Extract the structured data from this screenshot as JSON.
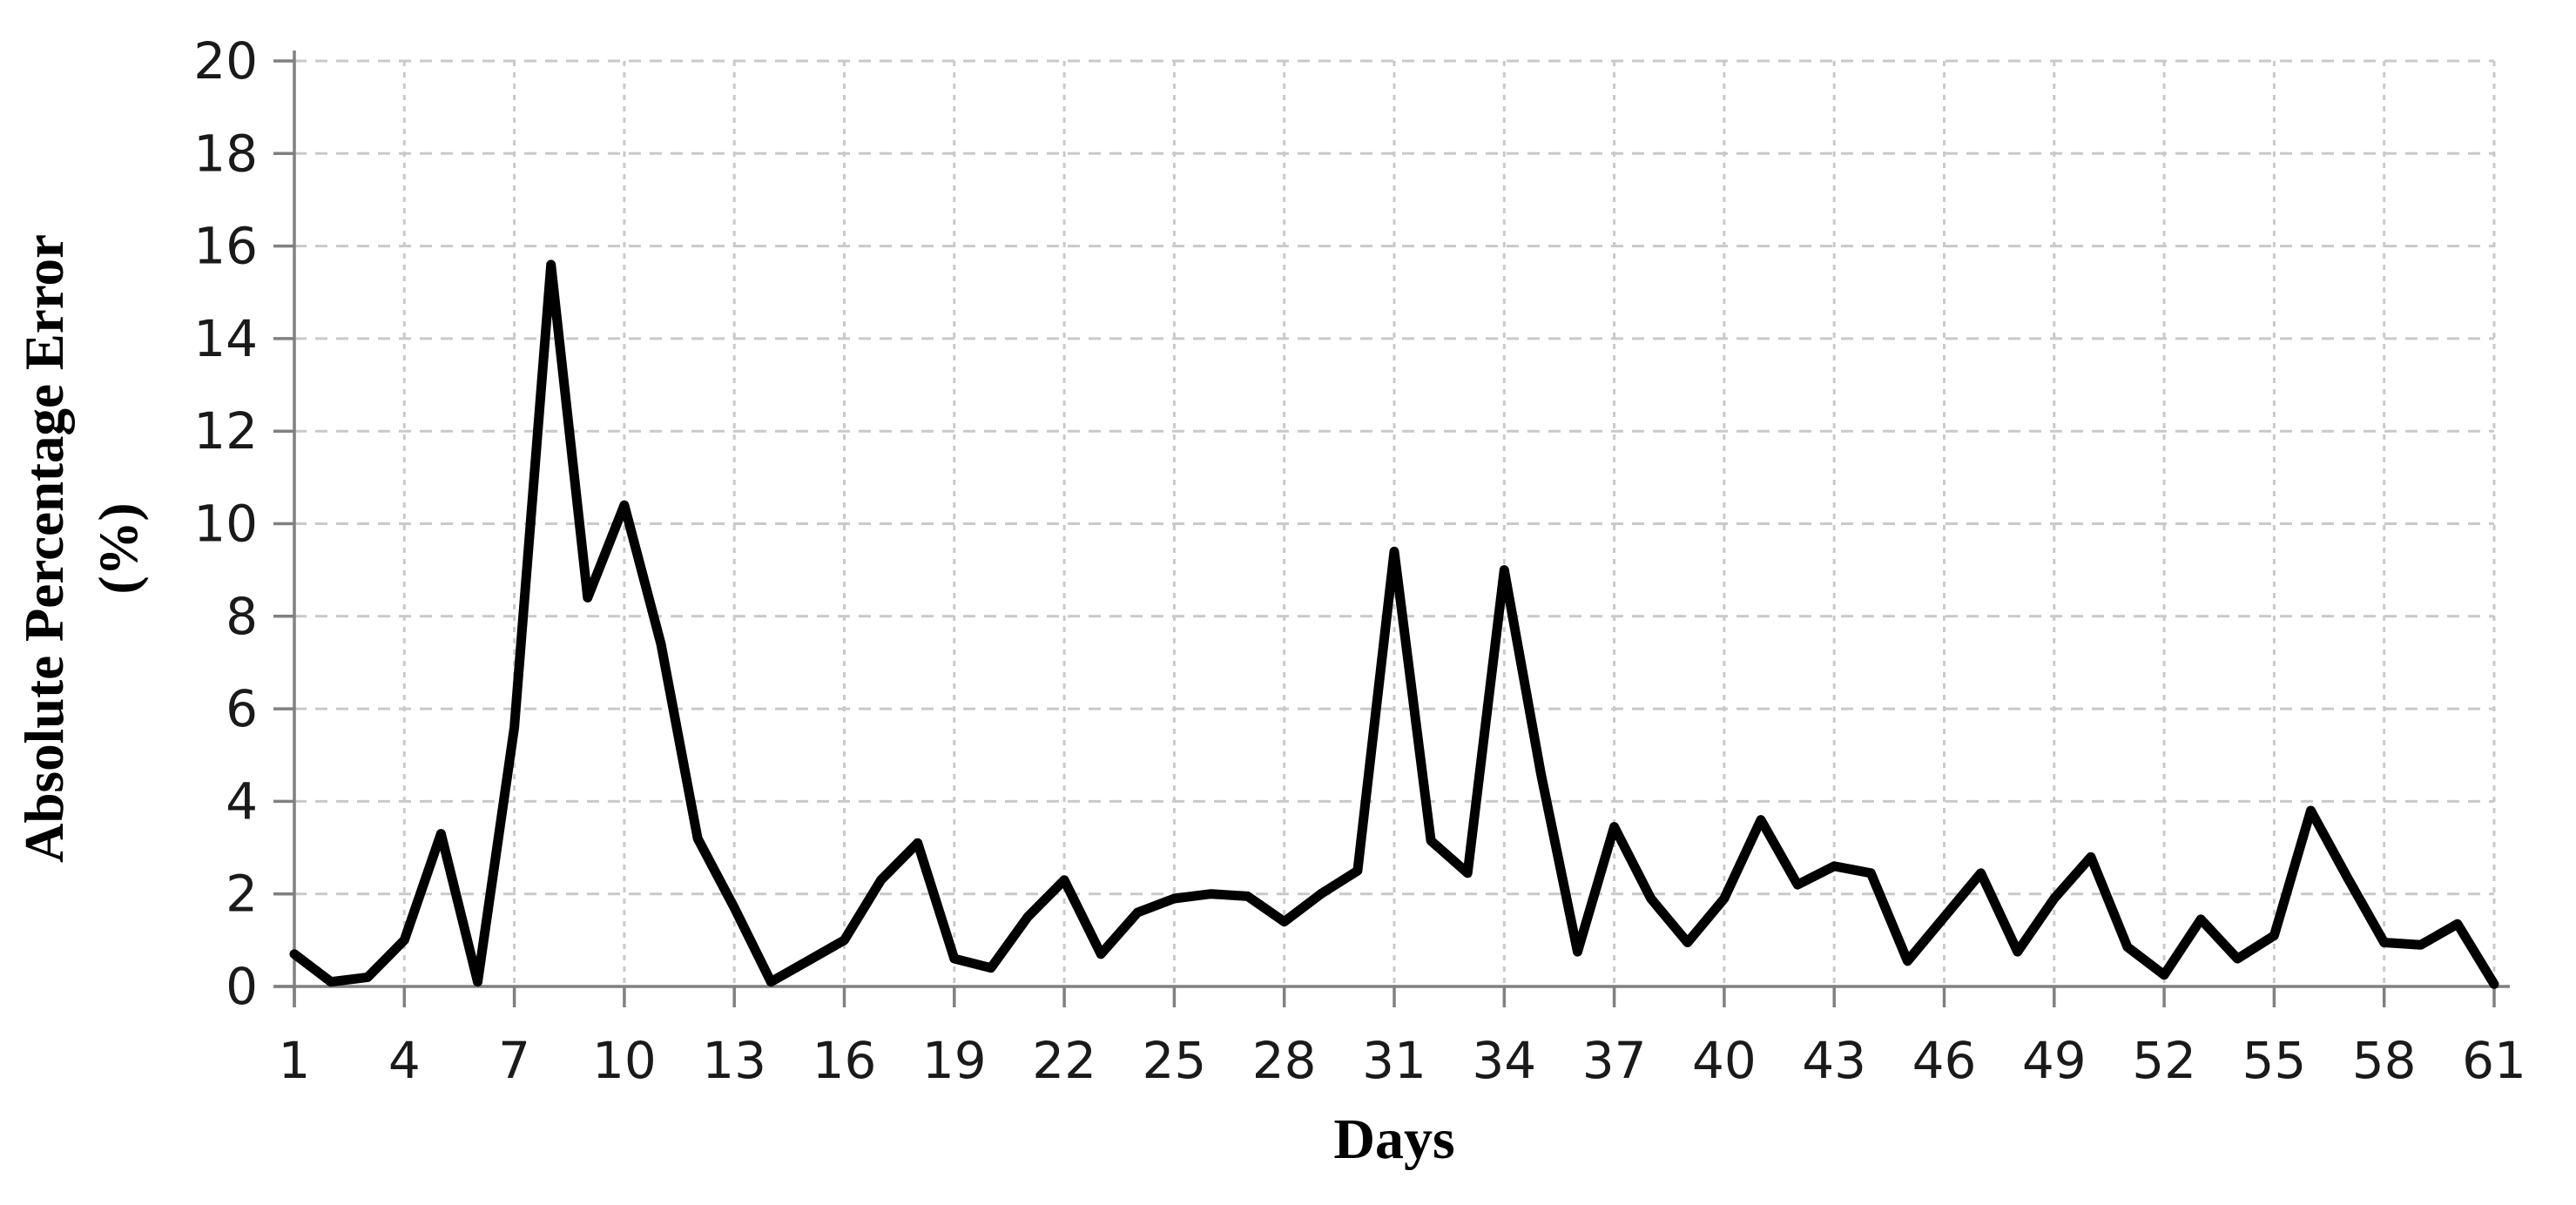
{
  "chart_data": {
    "type": "line",
    "title": "",
    "xlabel": "Days",
    "ylabel": "Absolute Percentage Error (%)",
    "ylabel_lines": [
      "Absolute Percentage Error",
      "(%)"
    ],
    "x": [
      1,
      2,
      3,
      4,
      5,
      6,
      7,
      8,
      9,
      10,
      11,
      12,
      13,
      14,
      15,
      16,
      17,
      18,
      19,
      20,
      21,
      22,
      23,
      24,
      25,
      26,
      27,
      28,
      29,
      30,
      31,
      32,
      33,
      34,
      35,
      36,
      37,
      38,
      39,
      40,
      41,
      42,
      43,
      44,
      45,
      46,
      47,
      48,
      49,
      50,
      51,
      52,
      53,
      54,
      55,
      56,
      57,
      58,
      59,
      60,
      61
    ],
    "series": [
      {
        "name": "Absolute Percentage Error",
        "values": [
          0.7,
          0.1,
          0.2,
          1.0,
          3.3,
          0.1,
          5.6,
          15.6,
          8.4,
          10.4,
          7.4,
          3.2,
          1.7,
          0.1,
          0.55,
          1.0,
          2.3,
          3.1,
          0.6,
          0.4,
          1.5,
          2.3,
          0.7,
          1.6,
          1.9,
          2.0,
          1.95,
          1.4,
          2.0,
          2.5,
          9.4,
          3.15,
          2.45,
          9.0,
          4.6,
          0.75,
          3.45,
          1.9,
          0.95,
          1.9,
          3.6,
          2.2,
          2.6,
          2.45,
          0.55,
          1.5,
          2.45,
          0.75,
          1.9,
          2.8,
          0.85,
          0.25,
          1.45,
          0.6,
          1.1,
          3.8,
          2.35,
          0.95,
          0.9,
          1.35,
          0.05
        ]
      }
    ],
    "xlim": [
      1,
      61
    ],
    "ylim": [
      0,
      20
    ],
    "xticks": [
      1,
      4,
      7,
      10,
      13,
      16,
      19,
      22,
      25,
      28,
      31,
      34,
      37,
      40,
      43,
      46,
      49,
      52,
      55,
      58,
      61
    ],
    "yticks": [
      0,
      2,
      4,
      6,
      8,
      10,
      12,
      14,
      16,
      18,
      20
    ],
    "grid": "dashed-both",
    "legend_position": "none",
    "colors": {
      "series_line": "#000000",
      "axis_line": "#808080",
      "gridline": "#c9c9c9",
      "tick_text": "#1a1a1a"
    }
  }
}
